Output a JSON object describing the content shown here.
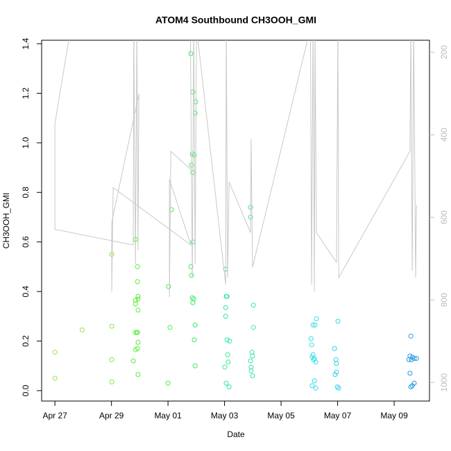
{
  "chart_data": {
    "type": "scatter",
    "title": "ATOM4 Southbound CH3OOH_GMI",
    "xlabel": "Date",
    "ylabel": "CH3OOH_GMI",
    "xlim": [
      -0.47,
      13.25
    ],
    "ylim": [
      -0.042,
      1.414
    ],
    "y2lim": [
      1045,
      171
    ],
    "xticks": [
      {
        "value": 0,
        "label": "Apr 27"
      },
      {
        "value": 2,
        "label": "Apr 29"
      },
      {
        "value": 4,
        "label": "May 01"
      },
      {
        "value": 6,
        "label": "May 03"
      },
      {
        "value": 8,
        "label": "May 05"
      },
      {
        "value": 10,
        "label": "May 07"
      },
      {
        "value": 12,
        "label": "May 09"
      }
    ],
    "yticks": [
      {
        "value": 0,
        "label": "0.0"
      },
      0.2,
      0.4,
      0.6,
      0.8,
      {
        "value": 1,
        "label": "1.0"
      },
      1.2,
      1.4
    ],
    "y2ticks": [
      200,
      400,
      600,
      800,
      1000
    ],
    "series": [
      {
        "color": "#99e64d",
        "x": [
          0,
          0,
          0.96
        ],
        "values": [
          0.155,
          0.05,
          0.245
        ]
      },
      {
        "color": "#80ea40",
        "x": [
          2.01,
          2.01,
          2.01,
          2.01
        ],
        "values": [
          0.55,
          0.26,
          0.125,
          0.035
        ]
      },
      {
        "color": "#55ee33",
        "x": [
          2.85,
          2.92,
          2.92,
          2.94,
          2.94,
          2.85,
          2.85,
          2.94,
          2.85,
          2.9,
          2.92,
          2.94,
          2.92,
          2.85,
          2.77,
          2.94
        ],
        "values": [
          0.61,
          0.5,
          0.44,
          0.37,
          0.38,
          0.365,
          0.35,
          0.325,
          0.235,
          0.235,
          0.235,
          0.195,
          0.17,
          0.165,
          0.12,
          0.065
        ]
      },
      {
        "color": "#44ee44",
        "x": [
          4.12,
          4.02,
          4.07,
          4.0
        ],
        "values": [
          0.73,
          0.42,
          0.255,
          0.03
        ]
      },
      {
        "color": "#33ee55",
        "x": [
          4.81,
          4.88,
          4.98,
          4.96,
          4.86,
          4.93,
          4.83,
          4.88,
          4.88,
          4.81,
          4.83,
          4.86,
          4.91,
          4.88,
          4.96,
          4.93,
          4.96
        ],
        "values": [
          1.36,
          1.205,
          1.165,
          1.12,
          0.955,
          0.95,
          0.91,
          0.88,
          0.6,
          0.5,
          0.465,
          0.375,
          0.37,
          0.355,
          0.265,
          0.205,
          0.1
        ]
      },
      {
        "color": "#33e699",
        "x": [
          6.04,
          6.09,
          6.06,
          6.04,
          6.04,
          6.09,
          6.18,
          6.11,
          6.13,
          6.01,
          6.06,
          6.16
        ],
        "values": [
          0.49,
          0.38,
          0.38,
          0.335,
          0.3,
          0.205,
          0.2,
          0.145,
          0.115,
          0.095,
          0.03,
          0.015
        ]
      },
      {
        "color": "#33e6aa",
        "x": [
          6.92,
          6.92,
          7.02,
          7.02,
          6.97,
          6.99,
          6.92,
          6.94,
          6.94,
          6.99
        ],
        "values": [
          0.74,
          0.7,
          0.345,
          0.255,
          0.155,
          0.14,
          0.12,
          0.095,
          0.08,
          0.06
        ]
      },
      {
        "color": "#33dde6",
        "x": [
          9.25,
          9.13,
          9.2,
          9.06,
          9.08,
          9.13,
          9.1,
          9.18,
          9.15,
          9.23,
          9.18,
          9.1,
          9.23
        ],
        "values": [
          0.29,
          0.265,
          0.265,
          0.21,
          0.185,
          0.145,
          0.135,
          0.13,
          0.125,
          0.115,
          0.04,
          0.02,
          0.01
        ]
      },
      {
        "color": "#33d0e6",
        "x": [
          10.01,
          9.89,
          9.94,
          9.96,
          9.96,
          9.91,
          9.99,
          10.04
        ],
        "values": [
          0.28,
          0.17,
          0.125,
          0.11,
          0.075,
          0.065,
          0.015,
          0.01
        ]
      },
      {
        "color": "#2299dd",
        "x": [
          12.59,
          12.56,
          12.64,
          12.71,
          12.61,
          12.79,
          12.52,
          12.56,
          12.71,
          12.64,
          12.59
        ],
        "values": [
          0.22,
          0.14,
          0.135,
          0.13,
          0.125,
          0.13,
          0.125,
          0.07,
          0.03,
          0.02,
          0.015
        ]
      },
      {
        "color": "#c8c8c8",
        "axis": "y2",
        "line": true,
        "x": [
          0.56,
          0,
          0,
          2.77,
          2.79,
          2.85,
          2.9,
          2.94,
          2.97,
          2.01,
          2.01,
          2.06,
          4.81,
          4.05,
          4.05,
          4.1,
          4.83,
          4.79,
          4.86,
          4.91,
          4.96,
          5.01,
          6.04,
          6.06,
          6.11,
          6.16,
          6.92,
          6.94,
          6.99,
          9.04,
          9.08,
          9.13,
          9.18,
          9.2,
          9.25,
          9.96,
          10.01,
          10.04,
          12.56,
          12.59,
          12.64,
          12.69,
          12.76,
          12.79
        ],
        "values": [
          141,
          373,
          629,
          667,
          141,
          713,
          141,
          679,
          301,
          612,
          780,
          528,
          667,
          508,
          793,
          440,
          486,
          141,
          746,
          141,
          713,
          141,
          763,
          141,
          746,
          514,
          637,
          410,
          721,
          141,
          763,
          141,
          780,
          141,
          637,
          709,
          141,
          746,
          440,
          141,
          729,
          141,
          746,
          570
        ]
      }
    ]
  }
}
